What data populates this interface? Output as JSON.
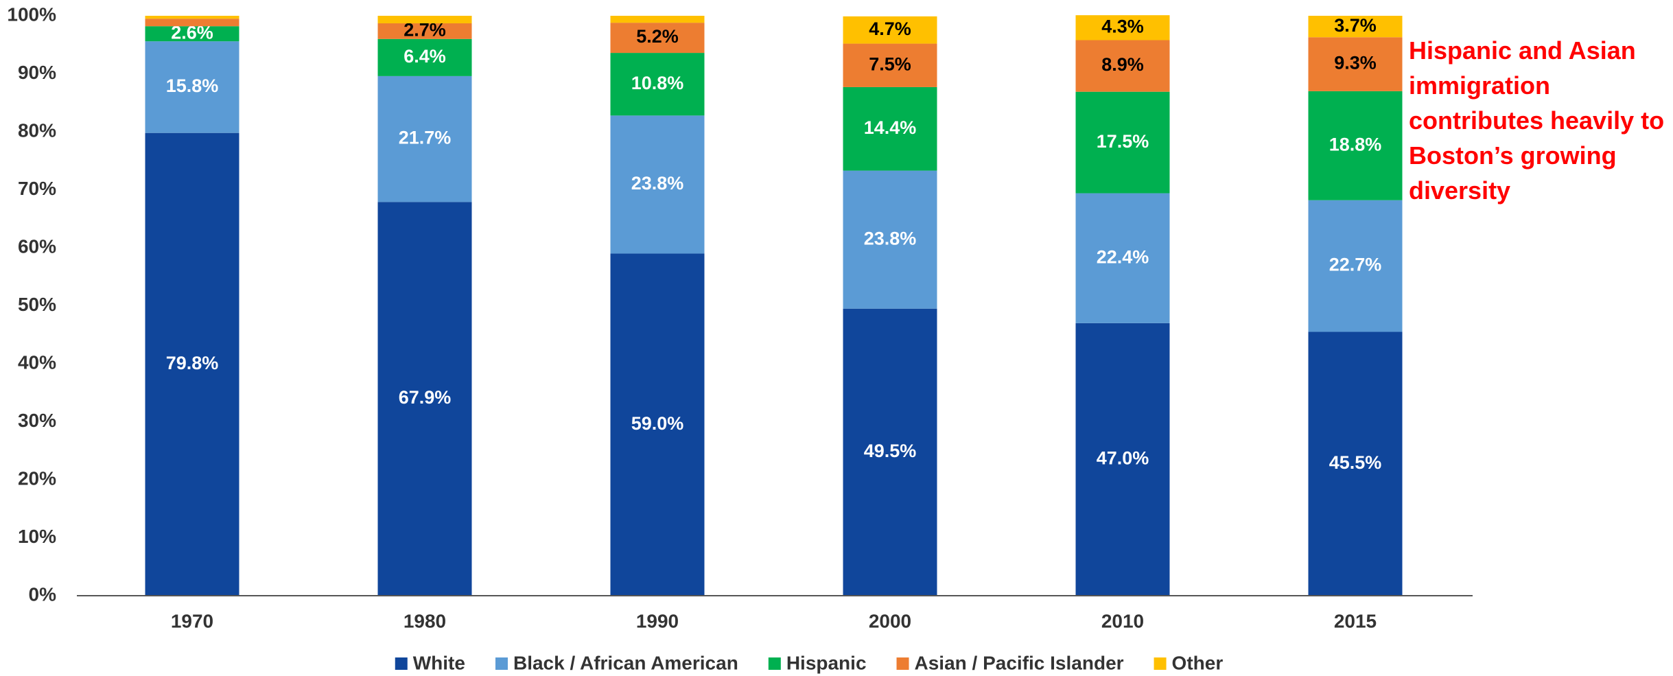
{
  "chart_data": {
    "type": "stacked_bar",
    "categories": [
      "1970",
      "1980",
      "1990",
      "2000",
      "2010",
      "2015"
    ],
    "series": [
      {
        "name": "White",
        "color": "#10469b",
        "values": [
          79.8,
          67.9,
          59.0,
          49.5,
          47.0,
          45.5
        ],
        "value_labels": [
          "79.8%",
          "67.9%",
          "59.0%",
          "49.5%",
          "47.0%",
          "45.5%"
        ],
        "label_color": "#ffffff"
      },
      {
        "name": "Black / African American",
        "color": "#5b9bd5",
        "values": [
          15.8,
          21.7,
          23.8,
          23.8,
          22.4,
          22.7
        ],
        "value_labels": [
          "15.8%",
          "21.7%",
          "23.8%",
          "23.8%",
          "22.4%",
          "22.7%"
        ],
        "label_color": "#ffffff"
      },
      {
        "name": "Hispanic",
        "color": "#00b050",
        "values": [
          2.6,
          6.4,
          10.8,
          14.4,
          17.5,
          18.8
        ],
        "value_labels": [
          "2.6%",
          "6.4%",
          "10.8%",
          "14.4%",
          "17.5%",
          "18.8%"
        ],
        "label_color": "#ffffff"
      },
      {
        "name": "Asian / Pacific Islander",
        "color": "#ed7d31",
        "values": [
          1.3,
          2.7,
          5.2,
          7.5,
          8.9,
          9.3
        ],
        "value_labels": [
          null,
          "2.7%",
          "5.2%",
          "7.5%",
          "8.9%",
          "9.3%"
        ],
        "label_color": "#000000"
      },
      {
        "name": "Other",
        "color": "#ffc000",
        "values": [
          0.5,
          1.3,
          1.2,
          4.7,
          4.3,
          3.7
        ],
        "value_labels": [
          null,
          null,
          null,
          "4.7%",
          "4.3%",
          "3.7%"
        ],
        "label_color": "#000000"
      }
    ],
    "ylim": [
      0,
      100
    ],
    "yticks": [
      {
        "value": 0,
        "label": "0%"
      },
      {
        "value": 10,
        "label": "10%"
      },
      {
        "value": 20,
        "label": "20%"
      },
      {
        "value": 30,
        "label": "30%"
      },
      {
        "value": 40,
        "label": "40%"
      },
      {
        "value": 50,
        "label": "50%"
      },
      {
        "value": 60,
        "label": "60%"
      },
      {
        "value": 70,
        "label": "70%"
      },
      {
        "value": 80,
        "label": "80%"
      },
      {
        "value": 90,
        "label": "90%"
      },
      {
        "value": 100,
        "label": "100%"
      }
    ],
    "grid": false,
    "legend": "bottom",
    "annotation": "Hispanic and Asian immigration contributes heavily to Boston’s growing diversity",
    "annotation_color": "#ff0000"
  }
}
